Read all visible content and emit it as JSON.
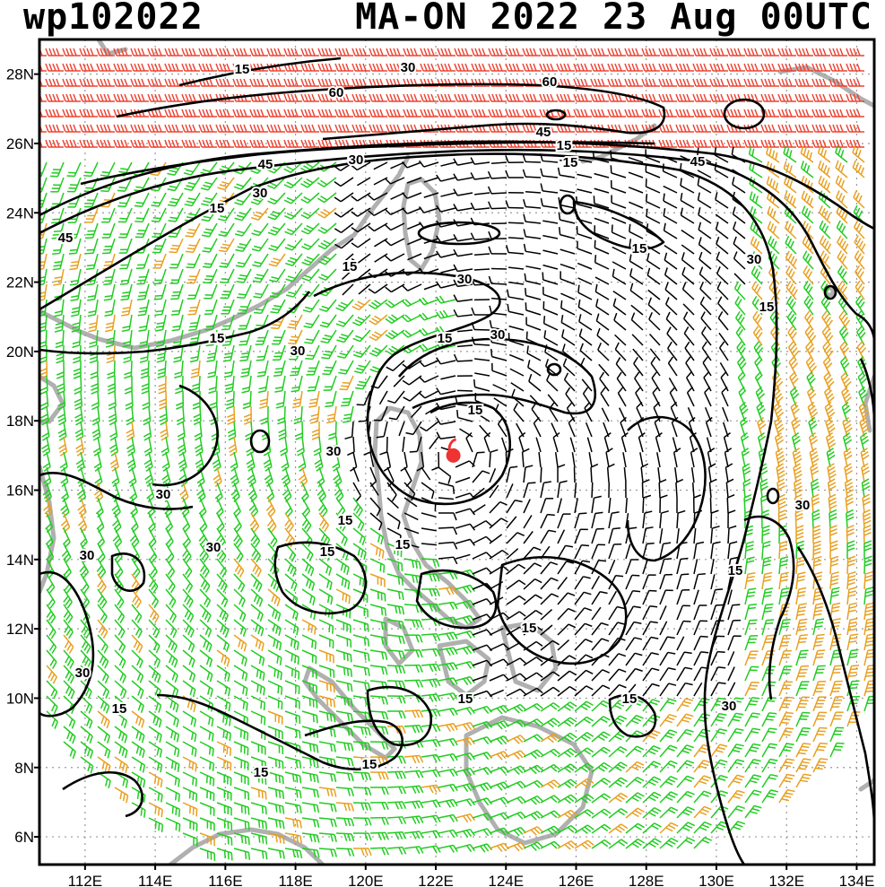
{
  "header": {
    "storm_id": "wp102022",
    "storm_datetime": "MA-ON 2022 23 Aug 00UTC"
  },
  "map": {
    "lon_labels": [
      "112E",
      "114E",
      "116E",
      "118E",
      "120E",
      "122E",
      "124E",
      "126E",
      "128E",
      "130E",
      "132E",
      "134E"
    ],
    "lat_labels": [
      "28N",
      "26N",
      "24N",
      "22N",
      "20N",
      "18N",
      "16N",
      "14N",
      "12N",
      "10N",
      "8N",
      "6N"
    ],
    "lon_range": [
      110.7,
      134.5
    ],
    "lat_range": [
      5.2,
      29.0
    ],
    "gridlines": "dotted",
    "contour_labels": [
      "15",
      "30",
      "45",
      "60"
    ],
    "storm_center": {
      "lon": 122.5,
      "lat": 17.0,
      "symbol": "tropical-cyclone-icon"
    },
    "colors": {
      "barb_lt30": "#22cc22",
      "barb_30_45": "#e8a020",
      "barb_gt45": "#ee4433",
      "barb_calm": "#000000",
      "coastline": "#b0b0b0",
      "contour": "#000000",
      "storm": "#ee3333"
    }
  }
}
